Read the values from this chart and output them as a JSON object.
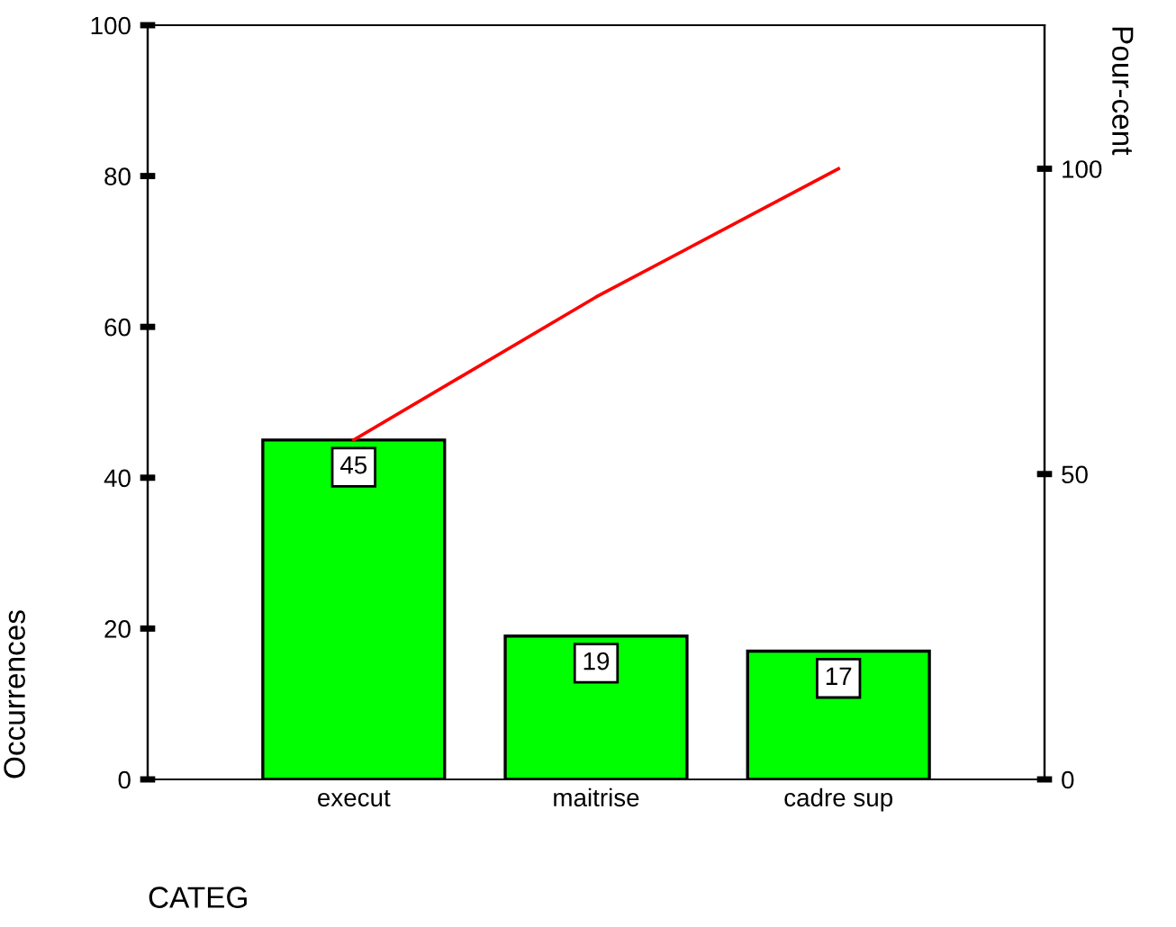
{
  "chart_data": {
    "type": "bar",
    "xlabel": "CATEG",
    "ylabel": "Occurrences",
    "y2label": "Pour-cent",
    "categories": [
      "execut",
      "maitrise",
      "cadre sup"
    ],
    "series": [
      {
        "color": "#00ff00",
        "values": [
          45,
          19,
          17
        ],
        "value_labels": [
          "45",
          "19",
          "17"
        ]
      },
      {
        "type": "line",
        "axis": "y2",
        "color": "#ff0000",
        "values": [
          55.6,
          79.0,
          100
        ]
      }
    ],
    "ylim": [
      0,
      100
    ],
    "yticks": [
      0,
      20,
      40,
      60,
      80,
      100
    ],
    "y2lim": [
      0,
      123.5
    ],
    "y2ticks": [
      0,
      50,
      100
    ],
    "grid": false,
    "legend": false,
    "marker": "none"
  }
}
